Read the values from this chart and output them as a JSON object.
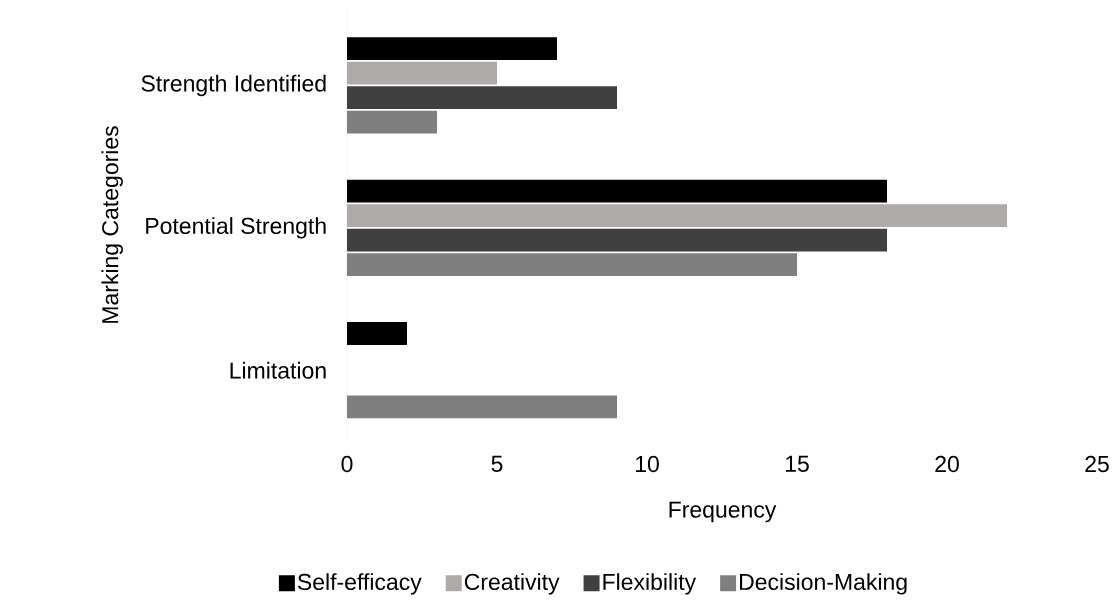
{
  "chart_data": {
    "type": "bar",
    "orientation": "horizontal",
    "xlabel": "Frequency",
    "ylabel": "Marking Categories",
    "categories": [
      "Strength Identified",
      "Potential Strength",
      "Limitation"
    ],
    "series": [
      {
        "name": "Self-efficacy",
        "color": "#000000",
        "values": [
          7,
          18,
          2
        ]
      },
      {
        "name": "Creativity",
        "color": "#aeaaaa",
        "values": [
          5,
          22,
          0
        ]
      },
      {
        "name": "Flexibility",
        "color": "#404040",
        "values": [
          9,
          18,
          0
        ]
      },
      {
        "name": "Decision-Making",
        "color": "#7f7f7f",
        "values": [
          3,
          15,
          9
        ]
      }
    ],
    "xlim": [
      0,
      25
    ],
    "xticks": [
      0,
      5,
      10,
      15,
      20,
      25
    ],
    "legend": "bottom"
  }
}
